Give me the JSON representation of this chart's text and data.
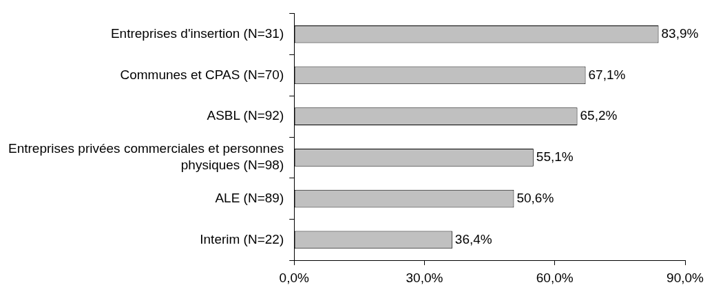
{
  "chart_data": {
    "type": "bar",
    "orientation": "horizontal",
    "categories": [
      "Entreprises d'insertion (N=31)",
      "Communes et CPAS (N=70)",
      "ASBL (N=92)",
      "Entreprises privées commerciales et personnes physiques (N=98)",
      "ALE (N=89)",
      "Interim (N=22)"
    ],
    "values": [
      83.9,
      67.1,
      65.2,
      55.1,
      50.6,
      36.4
    ],
    "value_labels": [
      "83,9%",
      "67,1%",
      "65,2%",
      "55,1%",
      "50,6%",
      "36,4%"
    ],
    "color": "#c0c0c0",
    "xlim": [
      0,
      90
    ],
    "xticks": [
      {
        "value": 0,
        "label": "0,0%"
      },
      {
        "value": 30,
        "label": "30,0%"
      },
      {
        "value": 60,
        "label": "60,0%"
      },
      {
        "value": 90,
        "label": "90,0%"
      }
    ],
    "grid": false,
    "legend": false
  }
}
